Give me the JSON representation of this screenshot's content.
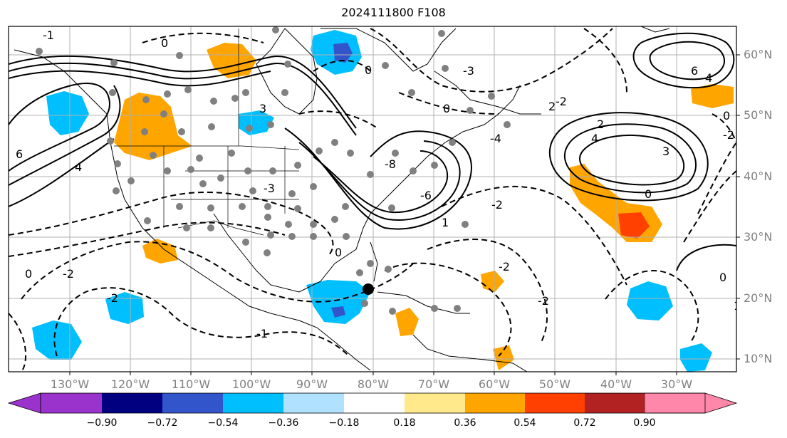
{
  "title": "2024111800 F108",
  "lat_labels": [
    "60°N",
    "50°N",
    "40°N",
    "30°N",
    "20°N",
    "10°N"
  ],
  "lon_labels": [
    "130°W",
    "120°W",
    "110°W",
    "100°W",
    "90°W",
    "80°W",
    "70°W",
    "60°W",
    "50°W",
    "40°W",
    "30°W"
  ],
  "colorbar": {
    "ticks": [
      "−0.90",
      "−0.72",
      "−0.54",
      "−0.36",
      "−0.18",
      "0.18",
      "0.36",
      "0.54",
      "0.72",
      "0.90"
    ],
    "colors": [
      "#9933cc",
      "#000080",
      "#3355cc",
      "#00bfff",
      "#b0e2ff",
      "#ffffff",
      "#ffe98a",
      "#ffa500",
      "#ff4000",
      "#b22222",
      "#ff88aa"
    ]
  },
  "contour_labels": [
    "0",
    "1",
    "2",
    "3",
    "4",
    "6",
    "-1",
    "-2",
    "-3",
    "-4",
    "-6",
    "-8"
  ],
  "marker_colors": {
    "stations": "#808080",
    "storm_center": "#000000"
  }
}
